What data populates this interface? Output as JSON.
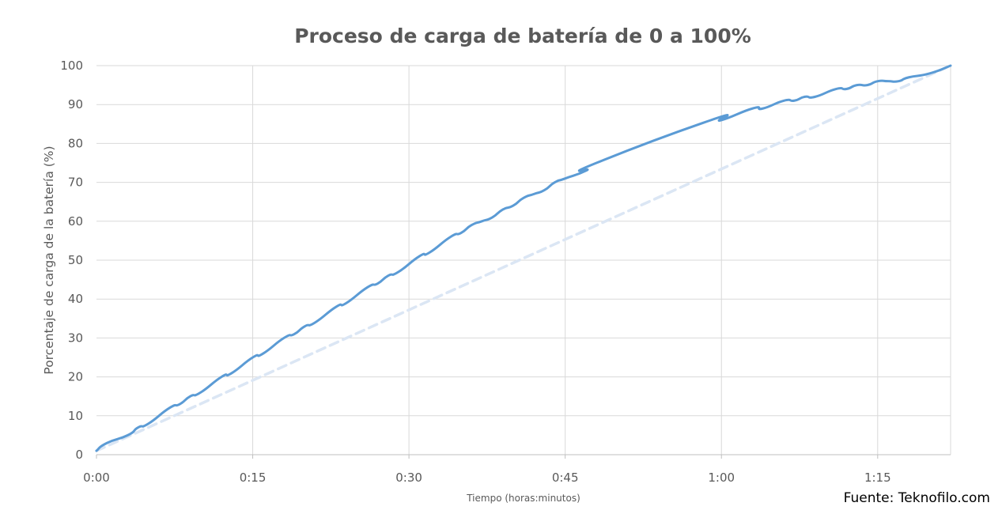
{
  "chart_data": {
    "type": "line",
    "title": "Proceso de carga de batería de 0 a 100%",
    "xlabel": "Tiempo (horas:minutos)",
    "ylabel": "Porcentaje de carga de la batería (%)",
    "x_unit": "minutes",
    "x_ticks": [
      {
        "value": 0,
        "label": "0:00"
      },
      {
        "value": 15,
        "label": "0:15"
      },
      {
        "value": 30,
        "label": "0:30"
      },
      {
        "value": 45,
        "label": "0:45"
      },
      {
        "value": 60,
        "label": "1:00"
      },
      {
        "value": 75,
        "label": "1:15"
      }
    ],
    "xlim": [
      0,
      82
    ],
    "ylim": [
      0,
      100
    ],
    "y_ticks": [
      0,
      10,
      20,
      30,
      40,
      50,
      60,
      70,
      80,
      90,
      100
    ],
    "grid": true,
    "series": [
      {
        "style": "solid",
        "color": "#5b9bd5",
        "x": [
          0,
          1,
          3,
          4,
          5,
          7,
          8,
          9,
          10,
          12,
          13,
          15,
          16,
          18,
          19,
          20,
          21,
          23,
          24,
          26,
          27,
          28,
          29,
          31,
          32,
          34,
          35,
          36,
          37,
          38,
          39,
          40,
          41,
          42,
          43,
          44,
          45,
          47,
          48,
          59,
          60,
          63,
          64,
          66,
          67,
          68,
          69,
          71,
          72,
          73,
          74,
          75,
          76,
          77,
          78,
          80,
          82
        ],
        "y": [
          1,
          3,
          5,
          7,
          8,
          12,
          13,
          15,
          16,
          20,
          21,
          25,
          26,
          30,
          31,
          33,
          34,
          38,
          39,
          43,
          44,
          46,
          47,
          51,
          52,
          56,
          57,
          59,
          60,
          61,
          63,
          64,
          66,
          67,
          68,
          70,
          71,
          73,
          75,
          86,
          86,
          89,
          89,
          91,
          91,
          92,
          92,
          94,
          94,
          95,
          95,
          96,
          96,
          96,
          97,
          98,
          100
        ]
      },
      {
        "style": "dashed",
        "color": "#dbe6f4",
        "x": [
          0,
          82
        ],
        "y": [
          1,
          100
        ]
      }
    ],
    "annotations": []
  },
  "source": "Fuente: Teknofilo.com"
}
